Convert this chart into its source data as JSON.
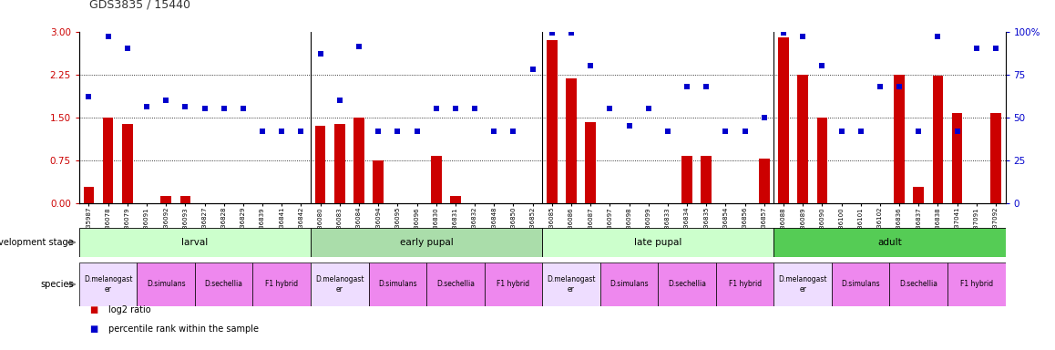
{
  "title": "GDS3835 / 15440",
  "samples": [
    "GSM435987",
    "GSM436078",
    "GSM436079",
    "GSM436091",
    "GSM436092",
    "GSM436093",
    "GSM436827",
    "GSM436828",
    "GSM436829",
    "GSM436839",
    "GSM436841",
    "GSM436842",
    "GSM436080",
    "GSM436083",
    "GSM436084",
    "GSM436094",
    "GSM436095",
    "GSM436096",
    "GSM436830",
    "GSM436831",
    "GSM436832",
    "GSM436848",
    "GSM436850",
    "GSM436852",
    "GSM436085",
    "GSM436086",
    "GSM436087",
    "GSM436097",
    "GSM436098",
    "GSM436099",
    "GSM436833",
    "GSM436834",
    "GSM436835",
    "GSM436854",
    "GSM436856",
    "GSM436857",
    "GSM436088",
    "GSM436089",
    "GSM436090",
    "GSM436100",
    "GSM436101",
    "GSM436102",
    "GSM436836",
    "GSM436837",
    "GSM436838",
    "GSM437041",
    "GSM437091",
    "GSM437092"
  ],
  "log2_ratio": [
    0.28,
    1.5,
    1.38,
    0.0,
    0.12,
    0.12,
    0.0,
    0.0,
    0.0,
    0.0,
    0.0,
    0.0,
    1.35,
    1.38,
    1.5,
    0.75,
    0.0,
    0.0,
    0.82,
    0.12,
    0.0,
    0.0,
    0.0,
    0.0,
    2.85,
    2.18,
    1.42,
    0.0,
    0.0,
    0.0,
    0.0,
    0.82,
    0.82,
    0.0,
    0.0,
    0.78,
    2.9,
    2.25,
    1.5,
    0.0,
    0.0,
    0.0,
    2.25,
    0.28,
    2.22,
    1.57,
    0.0,
    1.57
  ],
  "percentile": [
    62,
    97,
    90,
    56,
    60,
    56,
    55,
    55,
    55,
    42,
    42,
    42,
    87,
    60,
    91,
    42,
    42,
    42,
    55,
    55,
    55,
    42,
    42,
    78,
    99,
    99,
    80,
    55,
    45,
    55,
    42,
    68,
    68,
    42,
    42,
    50,
    99,
    97,
    80,
    42,
    42,
    68,
    68,
    42,
    97,
    42,
    90,
    90
  ],
  "dev_stages": [
    {
      "label": "larval",
      "start": 0,
      "end": 12,
      "color": "#ccffcc"
    },
    {
      "label": "early pupal",
      "start": 12,
      "end": 24,
      "color": "#aaddaa"
    },
    {
      "label": "late pupal",
      "start": 24,
      "end": 36,
      "color": "#ccffcc"
    },
    {
      "label": "adult",
      "start": 36,
      "end": 48,
      "color": "#55cc55"
    }
  ],
  "species_groups": [
    {
      "label": "D.melanogast\ner",
      "start": 0,
      "end": 3,
      "color": "#eeddff"
    },
    {
      "label": "D.simulans",
      "start": 3,
      "end": 6,
      "color": "#ee88ee"
    },
    {
      "label": "D.sechellia",
      "start": 6,
      "end": 9,
      "color": "#ee88ee"
    },
    {
      "label": "F1 hybrid",
      "start": 9,
      "end": 12,
      "color": "#ee88ee"
    },
    {
      "label": "D.melanogast\ner",
      "start": 12,
      "end": 15,
      "color": "#eeddff"
    },
    {
      "label": "D.simulans",
      "start": 15,
      "end": 18,
      "color": "#ee88ee"
    },
    {
      "label": "D.sechellia",
      "start": 18,
      "end": 21,
      "color": "#ee88ee"
    },
    {
      "label": "F1 hybrid",
      "start": 21,
      "end": 24,
      "color": "#ee88ee"
    },
    {
      "label": "D.melanogast\ner",
      "start": 24,
      "end": 27,
      "color": "#eeddff"
    },
    {
      "label": "D.simulans",
      "start": 27,
      "end": 30,
      "color": "#ee88ee"
    },
    {
      "label": "D.sechellia",
      "start": 30,
      "end": 33,
      "color": "#ee88ee"
    },
    {
      "label": "F1 hybrid",
      "start": 33,
      "end": 36,
      "color": "#ee88ee"
    },
    {
      "label": "D.melanogast\ner",
      "start": 36,
      "end": 39,
      "color": "#eeddff"
    },
    {
      "label": "D.simulans",
      "start": 39,
      "end": 42,
      "color": "#ee88ee"
    },
    {
      "label": "D.sechellia",
      "start": 42,
      "end": 45,
      "color": "#ee88ee"
    },
    {
      "label": "F1 hybrid",
      "start": 45,
      "end": 48,
      "color": "#ee88ee"
    }
  ],
  "ylim_left": [
    0,
    3
  ],
  "ylim_right": [
    0,
    100
  ],
  "yticks_left": [
    0,
    0.75,
    1.5,
    2.25,
    3
  ],
  "yticks_right": [
    0,
    25,
    50,
    75,
    100
  ],
  "bar_color": "#cc0000",
  "scatter_color": "#0000cc",
  "title_color": "#333333",
  "left_axis_color": "#cc0000",
  "right_axis_color": "#0000cc",
  "background_color": "#ffffff",
  "hline_values": [
    0.75,
    1.5,
    2.25
  ],
  "group_separators": [
    11.5,
    23.5,
    35.5
  ]
}
